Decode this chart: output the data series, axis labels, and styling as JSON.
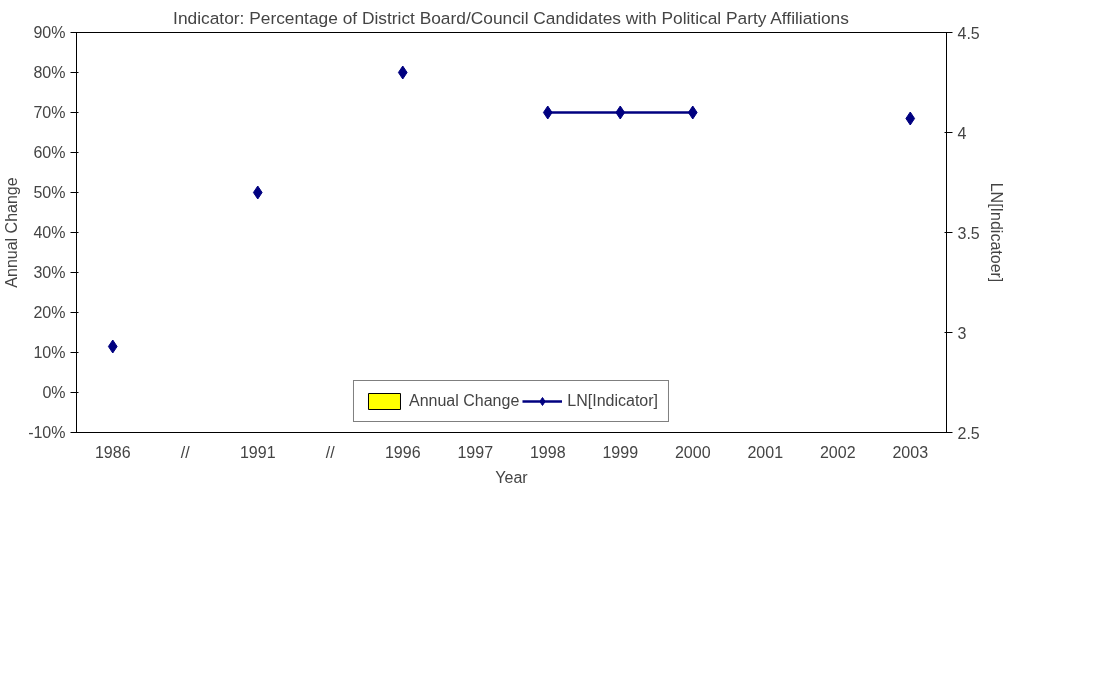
{
  "chart_data": {
    "type": "bar",
    "title": "Indicator: Percentage of District Board/Council Candidates with Political Party Affiliations",
    "xlabel": "Year",
    "ylabel": "Annual Change",
    "y2label": "LN[Indicatoer]",
    "categories": [
      "1986",
      "//",
      "1991",
      "//",
      "1996",
      "1997",
      "1998",
      "1999",
      "2000",
      "2001",
      "2002",
      "2003"
    ],
    "series": [
      {
        "name": "Annual Change",
        "color": "#ffff00",
        "values": [
          null,
          null,
          null,
          null,
          null,
          null,
          null,
          null,
          null,
          null,
          null,
          null
        ]
      },
      {
        "name": "LN[Indicator]",
        "type": "line",
        "axis": "y2",
        "color": "#000080",
        "marker": "diamond",
        "values": [
          2.93,
          null,
          3.7,
          null,
          4.3,
          null,
          4.1,
          4.1,
          4.1,
          null,
          null,
          4.07
        ]
      }
    ],
    "ylim": [
      -10,
      90
    ],
    "yticks": [
      {
        "value": -10,
        "label": "-10%"
      },
      {
        "value": 0,
        "label": "0%"
      },
      {
        "value": 10,
        "label": "10%"
      },
      {
        "value": 20,
        "label": "20%"
      },
      {
        "value": 30,
        "label": "30%"
      },
      {
        "value": 40,
        "label": "40%"
      },
      {
        "value": 50,
        "label": "50%"
      },
      {
        "value": 60,
        "label": "60%"
      },
      {
        "value": 70,
        "label": "70%"
      },
      {
        "value": 80,
        "label": "80%"
      },
      {
        "value": 90,
        "label": "90%"
      }
    ],
    "y2lim": [
      2.5,
      4.5
    ],
    "y2ticks": [
      2.5,
      3,
      3.5,
      4,
      4.5
    ],
    "grid": false,
    "legend": "bottom"
  }
}
